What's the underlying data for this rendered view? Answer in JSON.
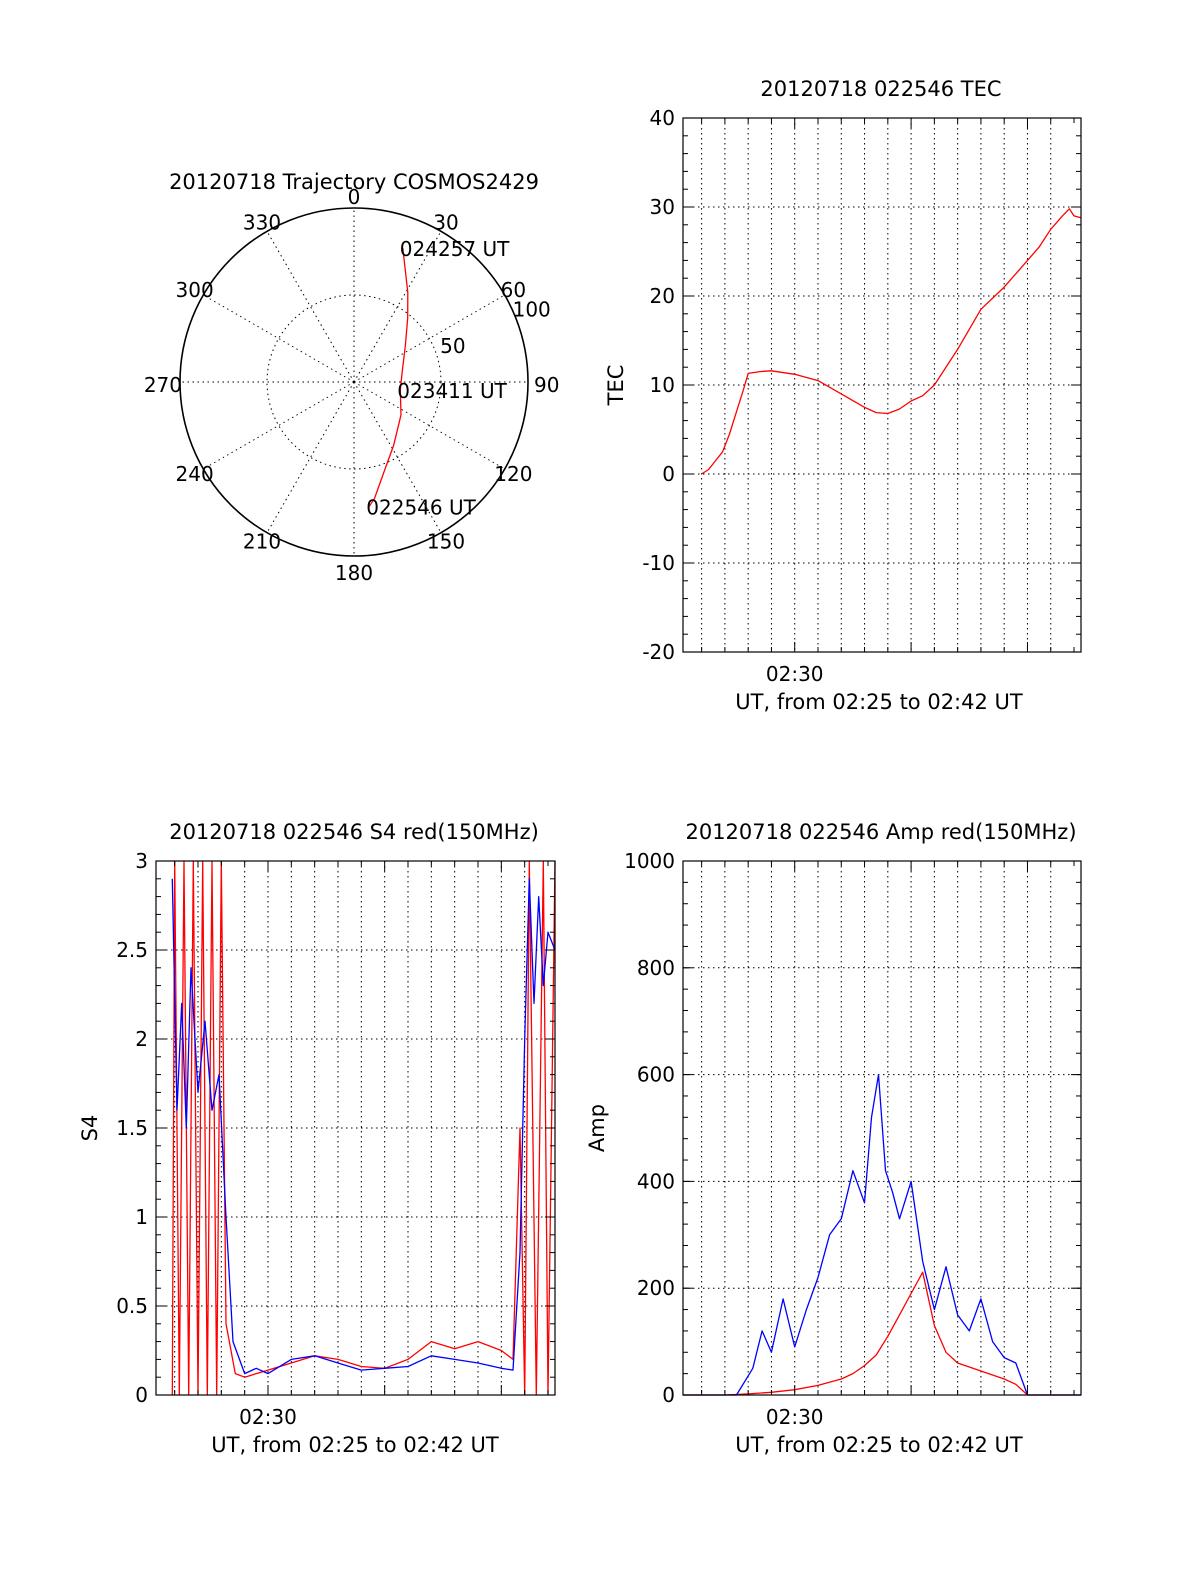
{
  "chart_data": [
    {
      "id": "trajectory",
      "type": "polar",
      "title": "20120718 Trajectory COSMOS2429",
      "angle_ticks": [
        "0",
        "30",
        "60",
        "90",
        "120",
        "150",
        "180",
        "210",
        "240",
        "270",
        "300",
        "330"
      ],
      "angle_values": [
        0,
        30,
        60,
        90,
        120,
        150,
        180,
        210,
        240,
        270,
        300,
        330
      ],
      "radial_ticks": [
        "50",
        "100"
      ],
      "radial_values": [
        50,
        100
      ],
      "rmax": 100,
      "series": [
        {
          "color": "#ff0000",
          "points": [
            {
              "az": 20,
              "r": 82
            },
            {
              "az": 24,
              "r": 72
            },
            {
              "az": 31,
              "r": 60
            },
            {
              "az": 40,
              "r": 48
            },
            {
              "az": 55,
              "r": 36
            },
            {
              "az": 80,
              "r": 28
            },
            {
              "az": 100,
              "r": 27
            },
            {
              "az": 125,
              "r": 33
            },
            {
              "az": 148,
              "r": 43
            },
            {
              "az": 162,
              "r": 55
            },
            {
              "az": 170,
              "r": 68
            },
            {
              "az": 173,
              "r": 72
            }
          ]
        }
      ],
      "annotations": [
        {
          "text": "024257 UT",
          "az": 20,
          "r": 82
        },
        {
          "text": "023411 UT",
          "az": 100,
          "r": 27
        },
        {
          "text": "022546 UT",
          "az": 173,
          "r": 72
        }
      ]
    },
    {
      "id": "tec",
      "type": "line",
      "title": "20120718 022546 TEC",
      "ylabel": "TEC",
      "xlabel": "UT, from 02:25 to 02:42 UT",
      "xlim": [
        0.2,
        17.3
      ],
      "ylim": [
        -20,
        40
      ],
      "yticks": [
        -20,
        -10,
        0,
        10,
        20,
        30,
        40
      ],
      "xtick_labels": [
        {
          "x": 5,
          "label": "02:30"
        }
      ],
      "grid": true,
      "series": [
        {
          "color": "#ff0000",
          "x": [
            1.0,
            1.3,
            1.6,
            1.9,
            2.2,
            2.5,
            2.8,
            3.0,
            3.5,
            4.0,
            5.0,
            6.0,
            7.0,
            8.0,
            8.5,
            9.0,
            9.5,
            10.0,
            10.5,
            11.0,
            12.0,
            13.0,
            14.0,
            15.0,
            15.5,
            16.0,
            16.5,
            16.8,
            17.0,
            17.3
          ],
          "y": [
            0.0,
            0.5,
            1.5,
            2.5,
            4.5,
            7.0,
            9.5,
            11.3,
            11.5,
            11.6,
            11.2,
            10.5,
            9.0,
            7.5,
            6.9,
            6.8,
            7.3,
            8.2,
            8.8,
            10.0,
            14.0,
            18.5,
            21.0,
            24.0,
            25.5,
            27.5,
            29.0,
            29.8,
            29.0,
            28.8
          ]
        }
      ]
    },
    {
      "id": "s4",
      "type": "line",
      "title": "20120718 022546 S4 red(150MHz)",
      "ylabel": "S4",
      "xlabel": "UT, from 02:25 to 02:42 UT",
      "xlim": [
        0.2,
        17.3
      ],
      "ylim": [
        0,
        3
      ],
      "yticks": [
        0,
        0.5,
        1,
        1.5,
        2,
        2.5,
        3
      ],
      "ytick_labels": [
        "0",
        "0.5",
        "1",
        "1.5",
        "2",
        "2.5",
        "3"
      ],
      "xtick_labels": [
        {
          "x": 5,
          "label": "02:30"
        }
      ],
      "grid": true,
      "series": [
        {
          "name": "red",
          "color": "#ff0000",
          "x": [
            0.9,
            1.0,
            1.2,
            1.4,
            1.6,
            1.8,
            2.0,
            2.2,
            2.4,
            2.6,
            2.8,
            3.0,
            3.2,
            3.6,
            4.0,
            5.0,
            6.0,
            7.0,
            8.0,
            9.0,
            10.0,
            11.0,
            12.0,
            13.0,
            14.0,
            15.0,
            15.5,
            15.8,
            16.0,
            16.2,
            16.5,
            16.8,
            17.0,
            17.3
          ],
          "y": [
            0.0,
            3.0,
            0.0,
            3.0,
            0.0,
            3.0,
            0.0,
            3.0,
            0.0,
            3.0,
            0.0,
            3.0,
            0.4,
            0.12,
            0.1,
            0.14,
            0.18,
            0.22,
            0.2,
            0.16,
            0.15,
            0.2,
            0.3,
            0.26,
            0.3,
            0.25,
            0.2,
            1.5,
            0.0,
            3.0,
            0.0,
            3.0,
            0.0,
            3.0
          ]
        },
        {
          "name": "blue",
          "color": "#0000ff",
          "x": [
            0.9,
            1.1,
            1.3,
            1.5,
            1.7,
            2.0,
            2.3,
            2.6,
            2.9,
            3.2,
            3.5,
            4.0,
            4.5,
            5.0,
            6.0,
            7.0,
            8.0,
            9.0,
            10.0,
            11.0,
            12.0,
            13.0,
            14.0,
            15.0,
            15.5,
            15.8,
            16.0,
            16.2,
            16.4,
            16.6,
            16.8,
            17.0,
            17.3
          ],
          "y": [
            2.9,
            1.6,
            2.2,
            1.5,
            2.4,
            1.7,
            2.1,
            1.6,
            1.8,
            1.0,
            0.3,
            0.12,
            0.15,
            0.12,
            0.2,
            0.22,
            0.18,
            0.14,
            0.15,
            0.16,
            0.22,
            0.2,
            0.18,
            0.15,
            0.14,
            0.8,
            2.0,
            2.9,
            2.2,
            2.8,
            2.3,
            2.6,
            2.5
          ]
        }
      ]
    },
    {
      "id": "amp",
      "type": "line",
      "title": "20120718 022546 Amp red(150MHz)",
      "ylabel": "Amp",
      "xlabel": "UT, from 02:25 to 02:42 UT",
      "xlim": [
        0.2,
        17.3
      ],
      "ylim": [
        0,
        1000
      ],
      "yticks": [
        0,
        200,
        400,
        600,
        800,
        1000
      ],
      "xtick_labels": [
        {
          "x": 5,
          "label": "02:30"
        }
      ],
      "grid": true,
      "series": [
        {
          "name": "red",
          "color": "#ff0000",
          "x": [
            0.2,
            2.0,
            3.0,
            4.0,
            5.0,
            6.0,
            7.0,
            7.5,
            8.0,
            8.5,
            9.0,
            9.5,
            10.0,
            10.5,
            11.0,
            11.5,
            12.0,
            13.0,
            14.0,
            14.5,
            15.0,
            17.3
          ],
          "y": [
            0,
            0,
            2,
            5,
            10,
            18,
            30,
            40,
            55,
            75,
            110,
            150,
            190,
            230,
            130,
            80,
            60,
            45,
            30,
            20,
            0,
            0
          ]
        },
        {
          "name": "blue",
          "color": "#0000ff",
          "x": [
            0.2,
            2.5,
            3.2,
            3.6,
            4.0,
            4.5,
            5.0,
            5.5,
            6.0,
            6.5,
            7.0,
            7.5,
            8.0,
            8.3,
            8.6,
            8.9,
            9.2,
            9.5,
            10.0,
            10.5,
            11.0,
            11.5,
            12.0,
            12.5,
            13.0,
            13.5,
            14.0,
            14.5,
            15.0,
            15.5,
            17.3
          ],
          "y": [
            0,
            0,
            50,
            120,
            80,
            180,
            90,
            160,
            220,
            300,
            330,
            420,
            360,
            520,
            600,
            420,
            380,
            330,
            400,
            250,
            160,
            240,
            150,
            120,
            180,
            100,
            70,
            60,
            0,
            0,
            0
          ]
        }
      ]
    }
  ]
}
